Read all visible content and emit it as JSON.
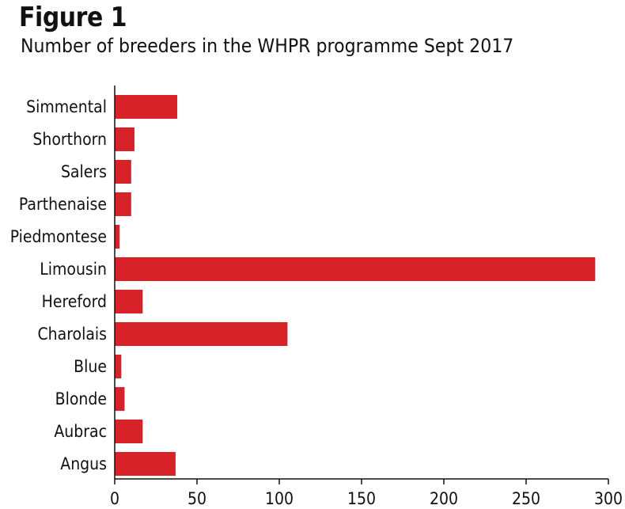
{
  "figure_label": "Figure 1",
  "chart_data": {
    "type": "bar",
    "orientation": "horizontal",
    "title": "Number of breeders in the WHPR programme Sept 2017",
    "xlabel": "",
    "ylabel": "",
    "categories": [
      "Simmental",
      "Shorthorn",
      "Salers",
      "Parthenaise",
      "Piedmontese",
      "Limousin",
      "Hereford",
      "Charolais",
      "Blue",
      "Blonde",
      "Aubrac",
      "Angus"
    ],
    "values": [
      38,
      12,
      10,
      10,
      3,
      292,
      17,
      105,
      4,
      6,
      17,
      37
    ],
    "xlim": [
      0,
      300
    ],
    "xticks": [
      0,
      50,
      100,
      150,
      200,
      250,
      300
    ],
    "grid": false,
    "legend": "none",
    "bar_color": "#d7222a"
  }
}
